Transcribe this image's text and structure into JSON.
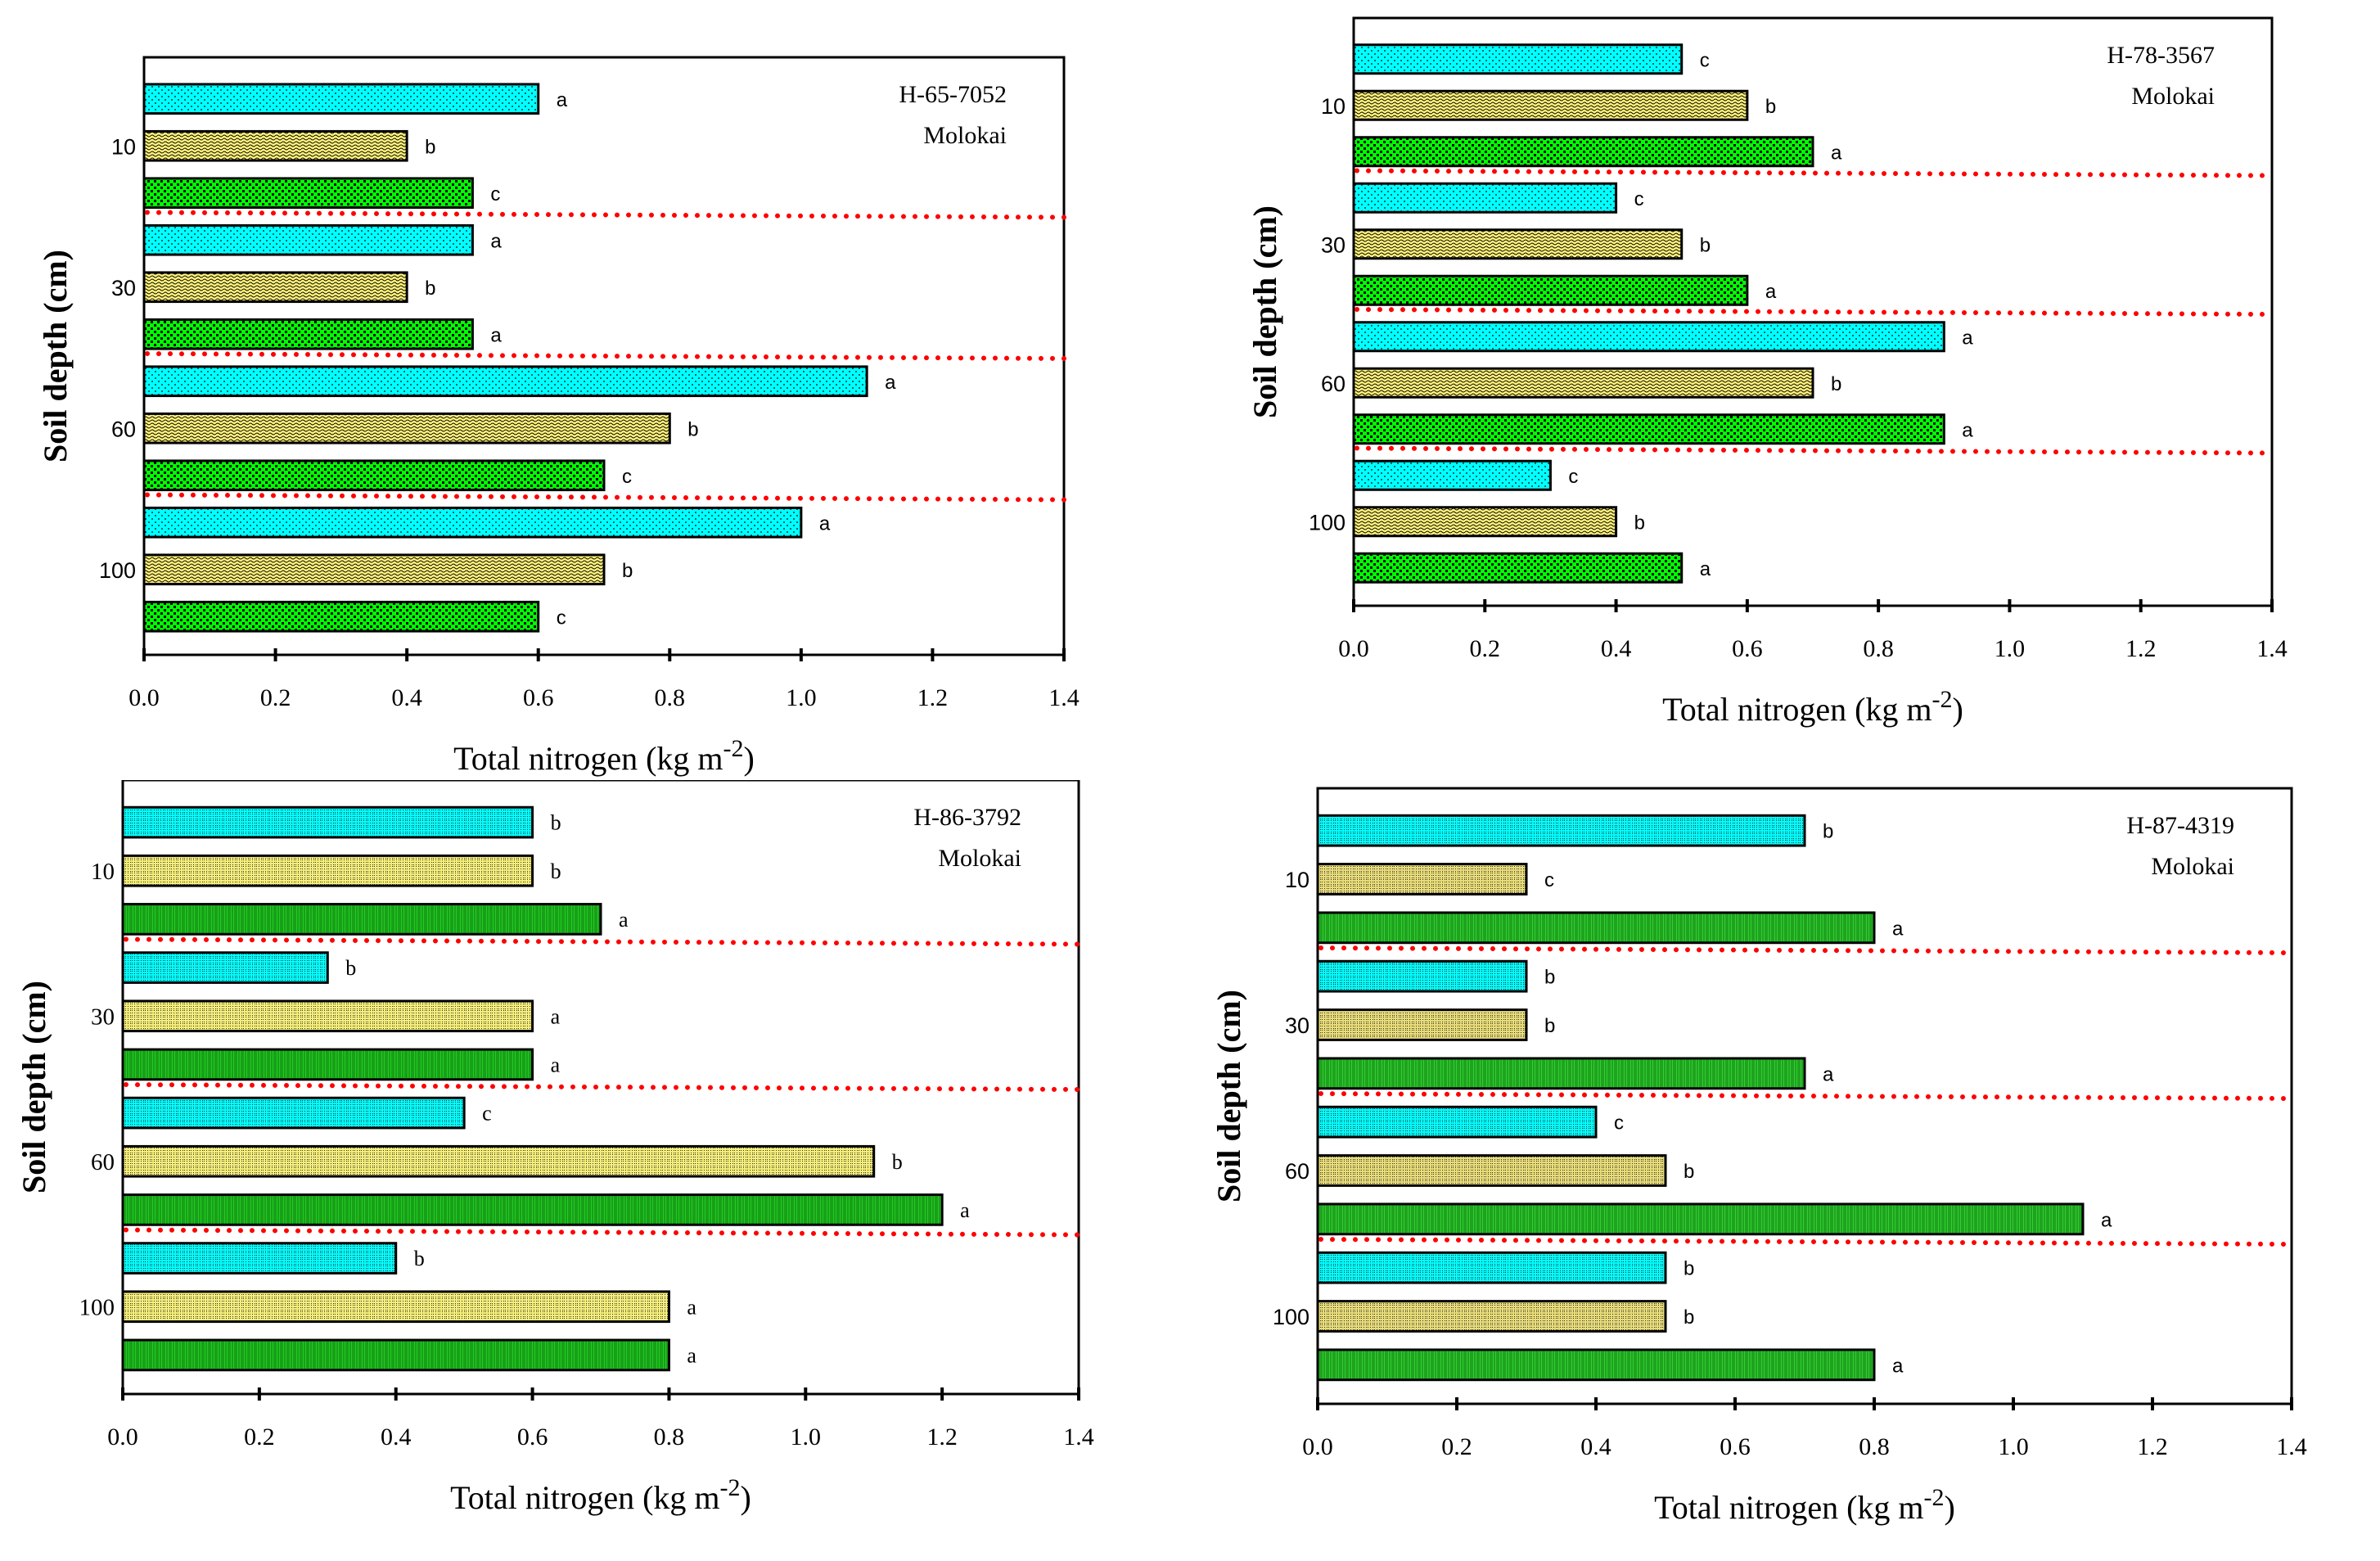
{
  "chart_data": [
    {
      "type": "bar",
      "orientation": "horizontal",
      "title": "",
      "annotation": [
        "H-65-7052",
        "Molokai"
      ],
      "xlabel": "Total nitrogen (kg m",
      "xlabel_sup": "-2",
      "xlabel_close": ")",
      "ylabel": "Soil depth (cm)",
      "xlim": [
        0,
        1.4
      ],
      "xticks": [
        "0.0",
        "0.2",
        "0.4",
        "0.6",
        "0.8",
        "1.0",
        "1.2",
        "1.4"
      ],
      "grid": false,
      "categories": [
        "10",
        "30",
        "60",
        "100"
      ],
      "series": [
        {
          "name": "cyan",
          "color": "#00FFFF",
          "values": [
            0.6,
            0.5,
            1.1,
            1.0
          ],
          "letters": [
            "a",
            "a",
            "a",
            "a"
          ]
        },
        {
          "name": "yellow",
          "color": "#FFF27A",
          "values": [
            0.4,
            0.4,
            0.8,
            0.7
          ],
          "letters": [
            "b",
            "b",
            "b",
            "b"
          ]
        },
        {
          "name": "green",
          "color": "#00FF00",
          "values": [
            0.5,
            0.5,
            0.7,
            0.6
          ],
          "letters": [
            "c",
            "a",
            "c",
            "c"
          ]
        }
      ],
      "separator_color": "#FF0000"
    },
    {
      "type": "bar",
      "orientation": "horizontal",
      "title": "",
      "annotation": [
        "H-78-3567",
        "Molokai"
      ],
      "xlabel": "Total nitrogen (kg m",
      "xlabel_sup": "-2",
      "xlabel_close": ")",
      "ylabel": "Soil depth (cm)",
      "xlim": [
        0,
        1.4
      ],
      "xticks": [
        "0.0",
        "0.2",
        "0.4",
        "0.6",
        "0.8",
        "1.0",
        "1.2",
        "1.4"
      ],
      "grid": false,
      "categories": [
        "10",
        "30",
        "60",
        "100"
      ],
      "series": [
        {
          "name": "cyan",
          "color": "#00FFFF",
          "values": [
            0.5,
            0.4,
            0.9,
            0.3
          ],
          "letters": [
            "c",
            "c",
            "a",
            "c"
          ]
        },
        {
          "name": "yellow",
          "color": "#FFF27A",
          "values": [
            0.6,
            0.5,
            0.7,
            0.4
          ],
          "letters": [
            "b",
            "b",
            "b",
            "b"
          ]
        },
        {
          "name": "green",
          "color": "#00FF00",
          "values": [
            0.7,
            0.6,
            0.9,
            0.5
          ],
          "letters": [
            "a",
            "a",
            "a",
            "a"
          ]
        }
      ],
      "separator_color": "#FF0000"
    },
    {
      "type": "bar",
      "orientation": "horizontal",
      "title": "",
      "annotation": [
        "H-86-3792",
        "Molokai"
      ],
      "xlabel": "Total nitrogen (kg m",
      "xlabel_sup": "-2",
      "xlabel_close": ")",
      "ylabel": "Soil depth (cm)",
      "xlim": [
        0,
        1.4
      ],
      "xticks": [
        "0.0",
        "0.2",
        "0.4",
        "0.6",
        "0.8",
        "1.0",
        "1.2",
        "1.4"
      ],
      "grid": false,
      "categories": [
        "10",
        "30",
        "60",
        "100"
      ],
      "series": [
        {
          "name": "cyan",
          "color": "#00FFFF",
          "values": [
            0.6,
            0.3,
            0.5,
            0.4
          ],
          "letters": [
            "b",
            "b",
            "c",
            "b"
          ]
        },
        {
          "name": "yellow",
          "color": "#F5EE7A",
          "values": [
            0.6,
            0.6,
            1.1,
            0.8
          ],
          "letters": [
            "b",
            "a",
            "b",
            "a"
          ]
        },
        {
          "name": "green",
          "color": "#22CC22",
          "values": [
            0.7,
            0.6,
            1.2,
            0.8
          ],
          "letters": [
            "a",
            "a",
            "a",
            "a"
          ]
        }
      ],
      "separator_color": "#FF0000"
    },
    {
      "type": "bar",
      "orientation": "horizontal",
      "title": "",
      "annotation": [
        "H-87-4319",
        "Molokai"
      ],
      "xlabel": "Total nitrogen (kg m",
      "xlabel_sup": "-2",
      "xlabel_close": ")",
      "ylabel": "Soil depth (cm)",
      "xlim": [
        0,
        1.4
      ],
      "xticks": [
        "0.0",
        "0.2",
        "0.4",
        "0.6",
        "0.8",
        "1.0",
        "1.2",
        "1.4"
      ],
      "grid": false,
      "categories": [
        "10",
        "30",
        "60",
        "100"
      ],
      "series": [
        {
          "name": "cyan",
          "color": "#00FFFF",
          "values": [
            0.7,
            0.3,
            0.4,
            0.5
          ],
          "letters": [
            "b",
            "b",
            "c",
            "b"
          ]
        },
        {
          "name": "yellow",
          "color": "#E8DC78",
          "values": [
            0.3,
            0.3,
            0.5,
            0.5
          ],
          "letters": [
            "c",
            "b",
            "b",
            "b"
          ]
        },
        {
          "name": "green",
          "color": "#2FD02F",
          "values": [
            0.8,
            0.7,
            1.1,
            0.8
          ],
          "letters": [
            "a",
            "a",
            "a",
            "a"
          ]
        }
      ],
      "separator_color": "#FF0000"
    }
  ]
}
